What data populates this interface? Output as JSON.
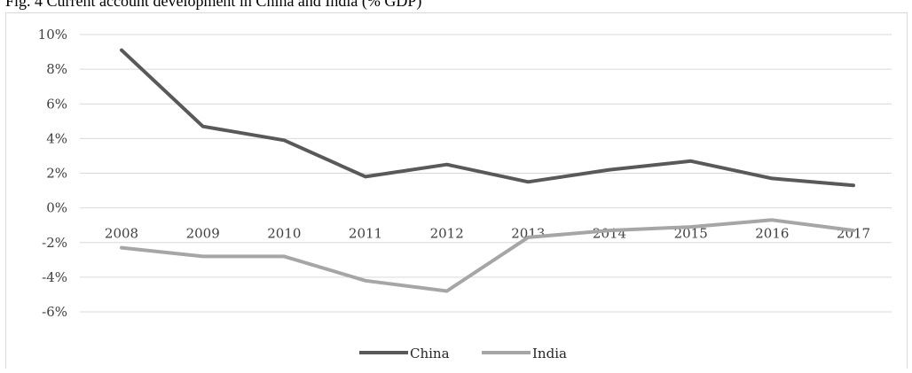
{
  "caption": "Fig. 4 Current account development in China and India (% GDP)",
  "chart_data": {
    "type": "line",
    "title": "",
    "xlabel": "",
    "ylabel": "",
    "categories": [
      "2008",
      "2009",
      "2010",
      "2011",
      "2012",
      "2013",
      "2014",
      "2015",
      "2016",
      "2017"
    ],
    "y_ticks": [
      "10%",
      "8%",
      "6%",
      "4%",
      "2%",
      "0%",
      "-2%",
      "-4%",
      "-6%"
    ],
    "ylim": [
      -6,
      10
    ],
    "grid": true,
    "legend_position": "bottom",
    "series": [
      {
        "name": "China",
        "color": "#595959",
        "values": [
          9.1,
          4.7,
          3.9,
          1.8,
          2.5,
          1.5,
          2.2,
          2.7,
          1.7,
          1.3
        ]
      },
      {
        "name": "India",
        "color": "#a6a6a6",
        "values": [
          -2.3,
          -2.8,
          -2.8,
          -4.2,
          -4.8,
          -1.7,
          -1.3,
          -1.1,
          -0.7,
          -1.3
        ]
      }
    ]
  }
}
